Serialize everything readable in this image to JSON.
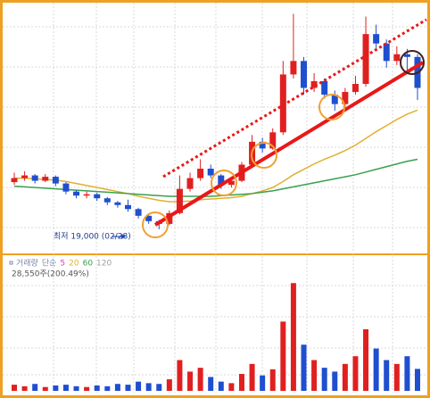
{
  "chart_data": [
    {
      "type": "candlestick",
      "open": [
        22500,
        22800,
        23000,
        22600,
        22900,
        22400,
        21800,
        21500,
        21600,
        21300,
        21000,
        20800,
        20500,
        20000,
        19600,
        19400,
        20200,
        22000,
        22800,
        23500,
        23000,
        22300,
        22600,
        23800,
        25500,
        25000,
        26200,
        30500,
        31500,
        29500,
        30000,
        29000,
        28300,
        29200,
        29800,
        33500,
        32800,
        31500,
        32000,
        31800
      ],
      "high": [
        23200,
        23300,
        23100,
        23100,
        23000,
        22500,
        21900,
        21800,
        21700,
        21400,
        21100,
        21200,
        20600,
        20100,
        19700,
        20400,
        23000,
        23200,
        24200,
        23800,
        23100,
        22900,
        24000,
        26000,
        25800,
        26500,
        31500,
        35000,
        31800,
        30600,
        30200,
        29300,
        29500,
        30400,
        34800,
        34200,
        33100,
        32600,
        32400,
        32000
      ],
      "low": [
        22300,
        22600,
        22400,
        22500,
        22200,
        21600,
        21300,
        21300,
        21100,
        20800,
        20600,
        20300,
        19800,
        19400,
        19000,
        19300,
        20100,
        21800,
        22600,
        22800,
        22000,
        22100,
        22500,
        23600,
        24700,
        24900,
        26000,
        30200,
        29000,
        29200,
        28700,
        27800,
        28100,
        29000,
        29600,
        32400,
        31000,
        31200,
        30800,
        28600
      ],
      "close": [
        22800,
        23000,
        22600,
        22900,
        22400,
        21800,
        21500,
        21600,
        21300,
        21000,
        20800,
        20500,
        20000,
        19600,
        19400,
        20200,
        22000,
        22800,
        23500,
        23000,
        22300,
        22600,
        23800,
        25500,
        25000,
        26200,
        30500,
        31500,
        29500,
        30000,
        29000,
        28300,
        29200,
        29800,
        33500,
        32800,
        31500,
        32000,
        31800,
        29500
      ],
      "up_color": "#e02020",
      "down_color": "#1f4fd0",
      "lines": [
        {
          "color": "#e0b030",
          "values": [
            22800,
            22800,
            22750,
            22700,
            22650,
            22550,
            22400,
            22250,
            22100,
            21950,
            21800,
            21650,
            21450,
            21300,
            21150,
            21050,
            21050,
            21100,
            21200,
            21250,
            21300,
            21350,
            21450,
            21650,
            21850,
            22100,
            22550,
            23050,
            23450,
            23850,
            24200,
            24500,
            24850,
            25250,
            25750,
            26250,
            26700,
            27150,
            27550,
            27850
          ]
        },
        {
          "color": "#3aa050",
          "values": [
            22200,
            22150,
            22100,
            22050,
            22000,
            21950,
            21900,
            21850,
            21800,
            21750,
            21700,
            21650,
            21600,
            21550,
            21500,
            21450,
            21450,
            21450,
            21450,
            21450,
            21500,
            21550,
            21600,
            21650,
            21750,
            21850,
            22000,
            22150,
            22300,
            22450,
            22600,
            22750,
            22900,
            23050,
            23250,
            23450,
            23650,
            23850,
            24050,
            24200
          ]
        }
      ],
      "ylim": [
        18000,
        35500
      ],
      "annotation": "최저 19,000 (02/28)"
    },
    {
      "type": "bar",
      "values": [
        8000,
        6000,
        9000,
        5000,
        7000,
        8000,
        6000,
        5000,
        7000,
        6000,
        9000,
        8000,
        12000,
        10000,
        9000,
        15000,
        40000,
        25000,
        30000,
        18000,
        12000,
        10000,
        22000,
        35000,
        20000,
        28000,
        90000,
        140000,
        60000,
        40000,
        30000,
        25000,
        35000,
        45000,
        80000,
        55000,
        40000,
        35000,
        45000,
        28550
      ],
      "ylim": [
        0,
        160000
      ],
      "legend": [
        {
          "text": "거래량",
          "color": "#7a8aa8"
        },
        {
          "text": "단순",
          "color": "#7a8aa8"
        },
        {
          "text": "5",
          "color": "#e040c0"
        },
        {
          "text": "20",
          "color": "#e0b030"
        },
        {
          "text": "60",
          "color": "#3aa050"
        },
        {
          "text": "120",
          "color": "#a0a0a0"
        }
      ],
      "annotation": "28,550주(200.49%)"
    }
  ]
}
